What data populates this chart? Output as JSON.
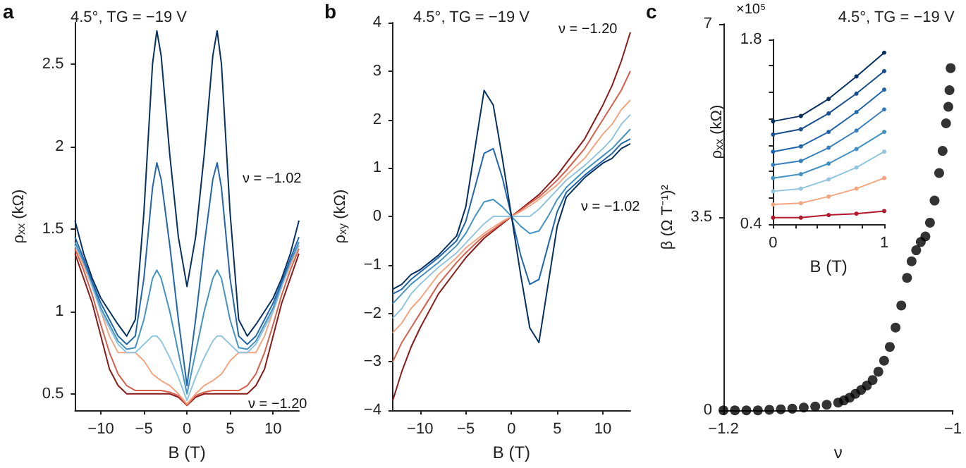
{
  "chart_data": [
    {
      "type": "line",
      "title": "4.5°, TG = −19 V",
      "xlabel": "B (T)",
      "ylabel": "ρ$_{xx}$ (kΩ)",
      "annotations": [
        "a",
        "ν = −1.02",
        "ν = −1.20"
      ],
      "marker": "none",
      "line_style": "solid",
      "xlim": [
        -13,
        13
      ],
      "ylim": [
        0.4,
        2.75
      ],
      "xticks": [
        {
          "value": -10,
          "label": "−10"
        },
        {
          "value": -5,
          "label": "−5"
        },
        0,
        5,
        10
      ],
      "yticks": [
        0.5,
        1,
        1.5,
        2,
        2.5
      ],
      "x": [
        -13,
        -12,
        -11,
        -10,
        -9,
        -8,
        -7,
        -6,
        -5,
        -4,
        -3.5,
        -3,
        -2,
        -1,
        0,
        1,
        2,
        3,
        3.5,
        4,
        5,
        6,
        7,
        8,
        9,
        10,
        11,
        12,
        13
      ],
      "series": [
        {
          "color": "#8b1a1a",
          "values": [
            1.35,
            1.2,
            1.05,
            0.85,
            0.65,
            0.55,
            0.5,
            0.5,
            0.5,
            0.5,
            0.5,
            0.5,
            0.5,
            0.48,
            0.43,
            0.48,
            0.5,
            0.5,
            0.5,
            0.5,
            0.5,
            0.5,
            0.5,
            0.55,
            0.65,
            0.85,
            1.05,
            1.2,
            1.35
          ]
        },
        {
          "color": "#d6604d",
          "values": [
            1.38,
            1.25,
            1.1,
            0.92,
            0.75,
            0.62,
            0.55,
            0.52,
            0.52,
            0.52,
            0.52,
            0.52,
            0.51,
            0.49,
            0.43,
            0.49,
            0.51,
            0.52,
            0.52,
            0.52,
            0.52,
            0.52,
            0.55,
            0.62,
            0.75,
            0.92,
            1.1,
            1.25,
            1.38
          ]
        },
        {
          "color": "#f4a582",
          "values": [
            1.4,
            1.28,
            1.15,
            1.0,
            0.85,
            0.75,
            0.75,
            0.75,
            0.7,
            0.62,
            0.6,
            0.58,
            0.55,
            0.5,
            0.44,
            0.5,
            0.55,
            0.58,
            0.6,
            0.62,
            0.7,
            0.75,
            0.75,
            0.75,
            0.85,
            1.0,
            1.15,
            1.28,
            1.4
          ]
        },
        {
          "color": "#92c5de",
          "values": [
            1.4,
            1.3,
            1.15,
            1.0,
            0.9,
            0.8,
            0.75,
            0.75,
            0.8,
            0.85,
            0.85,
            0.82,
            0.72,
            0.6,
            0.46,
            0.6,
            0.72,
            0.82,
            0.85,
            0.85,
            0.8,
            0.75,
            0.75,
            0.8,
            0.9,
            1.0,
            1.15,
            1.3,
            1.4
          ]
        },
        {
          "color": "#4393c3",
          "values": [
            1.42,
            1.3,
            1.17,
            1.02,
            0.92,
            0.82,
            0.77,
            0.78,
            0.95,
            1.2,
            1.25,
            1.2,
            1.0,
            0.75,
            0.5,
            0.75,
            1.0,
            1.2,
            1.25,
            1.2,
            0.95,
            0.78,
            0.77,
            0.82,
            0.92,
            1.02,
            1.17,
            1.3,
            1.42
          ]
        },
        {
          "color": "#2166ac",
          "values": [
            1.45,
            1.32,
            1.18,
            1.05,
            0.95,
            0.85,
            0.8,
            0.85,
            1.2,
            1.75,
            1.9,
            1.8,
            1.4,
            0.95,
            0.55,
            0.95,
            1.4,
            1.8,
            1.9,
            1.75,
            1.2,
            0.85,
            0.8,
            0.85,
            0.95,
            1.05,
            1.18,
            1.32,
            1.45
          ]
        },
        {
          "color": "#053061",
          "values": [
            1.55,
            1.35,
            1.2,
            1.08,
            1.0,
            0.92,
            0.85,
            0.95,
            1.6,
            2.5,
            2.7,
            2.55,
            1.95,
            1.45,
            1.15,
            1.45,
            1.95,
            2.55,
            2.7,
            2.5,
            1.6,
            0.95,
            0.85,
            0.92,
            1.0,
            1.08,
            1.2,
            1.35,
            1.55
          ]
        }
      ]
    },
    {
      "type": "line",
      "title": "4.5°, TG = −19 V",
      "xlabel": "B (T)",
      "ylabel": "ρ$_{xy}$ (kΩ)",
      "annotations": [
        "b",
        "ν = −1.20",
        "ν = −1.02"
      ],
      "marker": "none",
      "line_style": "solid",
      "xlim": [
        -13,
        13
      ],
      "ylim": [
        -4,
        4
      ],
      "xticks": [
        {
          "value": -10,
          "label": "−10"
        },
        {
          "value": -5,
          "label": "−5"
        },
        0,
        5,
        10
      ],
      "yticks": [
        {
          "value": -4,
          "label": "−4"
        },
        {
          "value": -3,
          "label": "−3"
        },
        {
          "value": -2,
          "label": "−2"
        },
        {
          "value": -1,
          "label": "−1"
        },
        0,
        1,
        2,
        3,
        4
      ],
      "x": [
        -13,
        -12,
        -11,
        -10,
        -8,
        -6,
        -5,
        -4,
        -3,
        -2,
        -1,
        0,
        1,
        2,
        3,
        4,
        5,
        6,
        8,
        10,
        11,
        12,
        13
      ],
      "series": [
        {
          "color": "#8b1a1a",
          "values": [
            -3.8,
            -3.2,
            -2.7,
            -2.3,
            -1.6,
            -1.1,
            -0.85,
            -0.65,
            -0.45,
            -0.3,
            -0.15,
            0,
            0.15,
            0.3,
            0.45,
            0.65,
            0.85,
            1.1,
            1.6,
            2.3,
            2.7,
            3.2,
            3.8
          ]
        },
        {
          "color": "#d6604d",
          "values": [
            -3.0,
            -2.6,
            -2.3,
            -2.0,
            -1.4,
            -0.95,
            -0.75,
            -0.57,
            -0.4,
            -0.27,
            -0.13,
            0,
            0.13,
            0.27,
            0.4,
            0.57,
            0.75,
            0.95,
            1.4,
            2.0,
            2.3,
            2.6,
            3.0
          ]
        },
        {
          "color": "#f4a582",
          "values": [
            -2.4,
            -2.2,
            -1.9,
            -1.7,
            -1.2,
            -0.85,
            -0.65,
            -0.5,
            -0.35,
            -0.22,
            -0.1,
            0,
            0.1,
            0.22,
            0.35,
            0.5,
            0.65,
            0.85,
            1.2,
            1.7,
            1.9,
            2.2,
            2.4
          ]
        },
        {
          "color": "#92c5de",
          "values": [
            -2.1,
            -1.9,
            -1.6,
            -1.4,
            -1.05,
            -0.75,
            -0.55,
            -0.35,
            -0.15,
            0.0,
            0.0,
            0,
            0.0,
            0.0,
            0.15,
            0.35,
            0.55,
            0.75,
            1.05,
            1.4,
            1.6,
            1.9,
            2.1
          ]
        },
        {
          "color": "#4393c3",
          "values": [
            -1.8,
            -1.6,
            -1.4,
            -1.25,
            -0.95,
            -0.6,
            -0.35,
            0.0,
            0.3,
            0.35,
            0.2,
            0,
            -0.2,
            -0.35,
            -0.3,
            0.0,
            0.35,
            0.6,
            0.95,
            1.25,
            1.4,
            1.6,
            1.8
          ]
        },
        {
          "color": "#2166ac",
          "values": [
            -1.6,
            -1.5,
            -1.3,
            -1.15,
            -0.85,
            -0.5,
            -0.1,
            0.6,
            1.3,
            1.4,
            0.8,
            0,
            -0.8,
            -1.4,
            -1.3,
            -0.6,
            0.1,
            0.5,
            0.85,
            1.15,
            1.3,
            1.5,
            1.6
          ]
        },
        {
          "color": "#053061",
          "values": [
            -1.5,
            -1.4,
            -1.2,
            -1.1,
            -0.8,
            -0.4,
            0.2,
            1.4,
            2.6,
            2.3,
            1.2,
            0,
            -1.2,
            -2.3,
            -2.6,
            -1.4,
            -0.2,
            0.4,
            0.8,
            1.1,
            1.2,
            1.4,
            1.5
          ]
        }
      ]
    },
    {
      "type": "scatter",
      "title": "4.5°, TG = −19 V",
      "xlabel": "ν",
      "ylabel": "β (Ω T⁻¹)²",
      "annotations": [
        "c",
        "×10⁵"
      ],
      "marker": "circle",
      "color": "#000000",
      "xlim": [
        -1.2,
        -1
      ],
      "ylim": [
        0,
        7
      ],
      "xticks": [
        {
          "value": -1.2,
          "label": "−1.2"
        },
        {
          "value": -1,
          "label": "−1"
        }
      ],
      "yticks": [
        0,
        3.5,
        7
      ],
      "x": [
        -1.2,
        -1.19,
        -1.18,
        -1.17,
        -1.16,
        -1.15,
        -1.14,
        -1.13,
        -1.12,
        -1.11,
        -1.1,
        -1.095,
        -1.09,
        -1.085,
        -1.08,
        -1.075,
        -1.07,
        -1.065,
        -1.06,
        -1.055,
        -1.05,
        -1.045,
        -1.04,
        -1.036,
        -1.032,
        -1.028,
        -1.024,
        -1.02,
        -1.016,
        -1.012,
        -1.009,
        -1.006,
        -1.004,
        -1.003,
        -1.002
      ],
      "values": [
        0,
        0,
        0,
        0,
        0.01,
        0.02,
        0.03,
        0.05,
        0.07,
        0.1,
        0.14,
        0.18,
        0.23,
        0.3,
        0.37,
        0.45,
        0.55,
        0.7,
        0.9,
        1.15,
        1.5,
        1.9,
        2.4,
        2.7,
        2.9,
        3.05,
        3.15,
        3.4,
        3.8,
        4.3,
        4.7,
        5.2,
        5.5,
        5.8,
        6.2
      ]
    },
    {
      "type": "line",
      "xlabel": "B (T)",
      "ylabel": "ρ$_{xx}$ (kΩ)",
      "marker": "circle",
      "line_style": "solid",
      "xlim": [
        0,
        1
      ],
      "ylim": [
        0.4,
        1.8
      ],
      "xticks": [
        0,
        {
          "value": 0.2,
          "label": null
        },
        {
          "value": 0.4,
          "label": null
        },
        {
          "value": 0.6,
          "label": null
        },
        {
          "value": 0.8,
          "label": null
        },
        1
      ],
      "yticks": [
        0.4,
        {
          "value": 0.6,
          "label": null
        },
        {
          "value": 0.8,
          "label": null
        },
        {
          "value": 1.0,
          "label": null
        },
        {
          "value": 1.2,
          "label": null
        },
        {
          "value": 1.4,
          "label": null
        },
        {
          "value": 1.6,
          "label": null
        },
        1.8
      ],
      "x": [
        0,
        0.25,
        0.5,
        0.75,
        1
      ],
      "series": [
        {
          "color": "#053061",
          "values": [
            1.18,
            1.22,
            1.35,
            1.52,
            1.7
          ]
        },
        {
          "color": "#1a4f8f",
          "values": [
            1.08,
            1.12,
            1.24,
            1.39,
            1.56
          ]
        },
        {
          "color": "#2166ac",
          "values": [
            0.95,
            0.99,
            1.1,
            1.25,
            1.42
          ]
        },
        {
          "color": "#3a7fbd",
          "values": [
            0.85,
            0.88,
            0.98,
            1.11,
            1.27
          ]
        },
        {
          "color": "#4393c3",
          "values": [
            0.75,
            0.78,
            0.86,
            0.97,
            1.1
          ]
        },
        {
          "color": "#92c5de",
          "values": [
            0.65,
            0.67,
            0.74,
            0.83,
            0.95
          ]
        },
        {
          "color": "#f4a582",
          "values": [
            0.55,
            0.56,
            0.61,
            0.67,
            0.75
          ]
        },
        {
          "color": "#b2182b",
          "values": [
            0.45,
            0.45,
            0.47,
            0.48,
            0.5
          ]
        }
      ]
    }
  ]
}
